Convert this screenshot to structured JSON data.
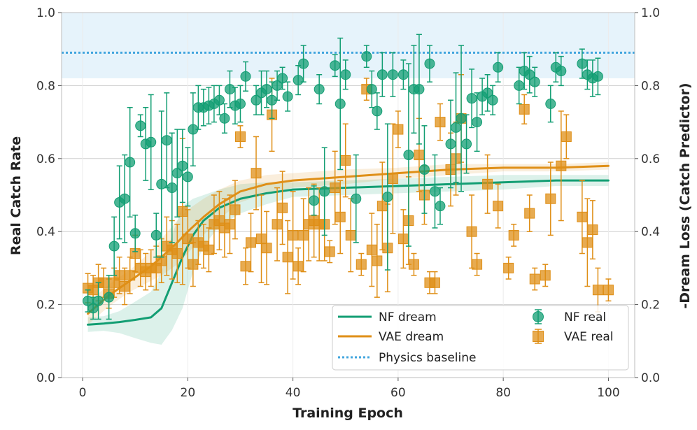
{
  "chart_data": {
    "type": "scatter",
    "xlabel": "Training Epoch",
    "ylabel_left": "Real Catch Rate",
    "ylabel_right": "-Dream Loss (Catch Predictor)",
    "xlim": [
      -4,
      105
    ],
    "ylim": [
      0.0,
      1.0
    ],
    "x_ticks": [
      "0",
      "20",
      "40",
      "60",
      "80",
      "100"
    ],
    "y_ticks": [
      "0.0",
      "0.2",
      "0.4",
      "0.6",
      "0.8",
      "1.0"
    ],
    "physics_baseline": 0.89,
    "baseline_band": [
      0.82,
      1.0
    ],
    "colors": {
      "nf": "#129e73",
      "vae": "#df8f17",
      "baseline": "#41a5de",
      "band": "#e6f3fb"
    },
    "legend": {
      "nf_dream": "NF dream",
      "vae_dream": "VAE dream",
      "baseline": "Physics baseline",
      "nf_real": "NF real",
      "vae_real": "VAE real"
    },
    "nf_dream": {
      "x": [
        1,
        4,
        7,
        10,
        13,
        15,
        17,
        19,
        21,
        23,
        26,
        30,
        35,
        40,
        50,
        60,
        70,
        80,
        90,
        100
      ],
      "y": [
        0.145,
        0.148,
        0.152,
        0.158,
        0.165,
        0.19,
        0.26,
        0.33,
        0.39,
        0.43,
        0.465,
        0.49,
        0.505,
        0.515,
        0.52,
        0.525,
        0.53,
        0.535,
        0.54,
        0.54
      ],
      "band": [
        0.02,
        0.02,
        0.03,
        0.05,
        0.07,
        0.1,
        0.13,
        0.14,
        0.1,
        0.07,
        0.05,
        0.04,
        0.03,
        0.02,
        0.02,
        0.02,
        0.02,
        0.02,
        0.015,
        0.015
      ]
    },
    "vae_dream": {
      "x": [
        1,
        3,
        5,
        7,
        9,
        11,
        13,
        15,
        18,
        20,
        23,
        26,
        30,
        35,
        40,
        50,
        60,
        70,
        80,
        90,
        100
      ],
      "y": [
        0.175,
        0.2,
        0.225,
        0.245,
        0.265,
        0.285,
        0.305,
        0.33,
        0.37,
        0.4,
        0.44,
        0.475,
        0.51,
        0.53,
        0.54,
        0.55,
        0.56,
        0.57,
        0.575,
        0.575,
        0.58
      ],
      "band": [
        0.03,
        0.03,
        0.03,
        0.03,
        0.03,
        0.035,
        0.04,
        0.05,
        0.06,
        0.06,
        0.05,
        0.04,
        0.03,
        0.025,
        0.02,
        0.02,
        0.015,
        0.015,
        0.01,
        0.01,
        0.01
      ]
    },
    "nf_real": {
      "x": [
        1,
        2,
        3,
        5,
        6,
        7,
        8,
        9,
        10,
        11,
        12,
        13,
        14,
        15,
        16,
        17,
        18,
        19,
        20,
        21,
        22,
        23,
        24,
        25,
        26,
        27,
        28,
        29,
        30,
        31,
        33,
        34,
        35,
        36,
        37,
        38,
        39,
        41,
        42,
        44,
        45,
        46,
        48,
        49,
        50,
        52,
        54,
        55,
        56,
        57,
        58,
        59,
        61,
        62,
        63,
        64,
        65,
        66,
        67,
        68,
        70,
        71,
        72,
        73,
        74,
        75,
        76,
        77,
        78,
        79,
        83,
        84,
        85,
        86,
        89,
        90,
        91,
        95,
        96,
        97,
        98
      ],
      "y": [
        0.21,
        0.19,
        0.21,
        0.22,
        0.36,
        0.48,
        0.49,
        0.59,
        0.395,
        0.69,
        0.64,
        0.645,
        0.39,
        0.53,
        0.65,
        0.52,
        0.56,
        0.58,
        0.55,
        0.68,
        0.74,
        0.74,
        0.745,
        0.75,
        0.76,
        0.71,
        0.79,
        0.745,
        0.75,
        0.825,
        0.76,
        0.78,
        0.79,
        0.76,
        0.8,
        0.82,
        0.77,
        0.815,
        0.86,
        0.485,
        0.79,
        0.51,
        0.855,
        0.75,
        0.83,
        0.49,
        0.88,
        0.79,
        0.73,
        0.83,
        0.495,
        0.83,
        0.83,
        0.61,
        0.79,
        0.79,
        0.57,
        0.86,
        0.51,
        0.47,
        0.64,
        0.685,
        0.71,
        0.64,
        0.765,
        0.7,
        0.77,
        0.78,
        0.76,
        0.85,
        0.8,
        0.84,
        0.83,
        0.81,
        0.75,
        0.85,
        0.84,
        0.86,
        0.83,
        0.82,
        0.825
      ],
      "err": [
        0.03,
        0.03,
        0.05,
        0.06,
        0.08,
        0.1,
        0.12,
        0.15,
        0.05,
        0.03,
        0.1,
        0.13,
        0.06,
        0.2,
        0.13,
        0.15,
        0.12,
        0.1,
        0.08,
        0.1,
        0.06,
        0.05,
        0.05,
        0.05,
        0.04,
        0.04,
        0.05,
        0.05,
        0.05,
        0.04,
        0.04,
        0.06,
        0.05,
        0.05,
        0.04,
        0.03,
        0.04,
        0.04,
        0.05,
        0.04,
        0.04,
        0.12,
        0.03,
        0.18,
        0.04,
        0.12,
        0.03,
        0.05,
        0.05,
        0.06,
        0.2,
        0.06,
        0.04,
        0.25,
        0.12,
        0.15,
        0.12,
        0.05,
        0.1,
        0.05,
        0.12,
        0.15,
        0.2,
        0.08,
        0.08,
        0.08,
        0.05,
        0.05,
        0.04,
        0.04,
        0.05,
        0.05,
        0.05,
        0.04,
        0.05,
        0.04,
        0.04,
        0.04,
        0.04,
        0.05,
        0.05
      ]
    },
    "vae_real": {
      "x": [
        1,
        2,
        3,
        4,
        5,
        6,
        7,
        8,
        9,
        10,
        11,
        12,
        13,
        14,
        15,
        16,
        17,
        18,
        19,
        20,
        21,
        22,
        23,
        24,
        25,
        26,
        27,
        28,
        29,
        30,
        31,
        32,
        33,
        34,
        35,
        36,
        37,
        38,
        39,
        40,
        41,
        42,
        43,
        44,
        45,
        46,
        47,
        48,
        49,
        50,
        51,
        53,
        54,
        55,
        56,
        57,
        58,
        59,
        60,
        61,
        62,
        63,
        64,
        65,
        66,
        67,
        68,
        70,
        71,
        72,
        74,
        75,
        77,
        79,
        81,
        82,
        84,
        85,
        86,
        88,
        89,
        91,
        92,
        95,
        96,
        97,
        98,
        100
      ],
      "y": [
        0.245,
        0.24,
        0.26,
        0.26,
        0.23,
        0.26,
        0.28,
        0.25,
        0.28,
        0.34,
        0.3,
        0.29,
        0.3,
        0.3,
        0.32,
        0.36,
        0.35,
        0.34,
        0.455,
        0.38,
        0.31,
        0.37,
        0.36,
        0.35,
        0.42,
        0.43,
        0.41,
        0.42,
        0.46,
        0.66,
        0.305,
        0.37,
        0.56,
        0.38,
        0.355,
        0.72,
        0.42,
        0.465,
        0.33,
        0.39,
        0.305,
        0.39,
        0.42,
        0.43,
        0.42,
        0.42,
        0.345,
        0.52,
        0.44,
        0.595,
        0.39,
        0.31,
        0.79,
        0.35,
        0.32,
        0.47,
        0.355,
        0.545,
        0.68,
        0.38,
        0.43,
        0.31,
        0.61,
        0.5,
        0.26,
        0.26,
        0.7,
        0.57,
        0.6,
        0.71,
        0.4,
        0.31,
        0.53,
        0.47,
        0.3,
        0.39,
        0.735,
        0.45,
        0.27,
        0.28,
        0.49,
        0.58,
        0.66,
        0.44,
        0.37,
        0.405,
        0.24,
        0.24
      ],
      "err": [
        0.04,
        0.04,
        0.05,
        0.04,
        0.04,
        0.04,
        0.05,
        0.05,
        0.05,
        0.05,
        0.05,
        0.05,
        0.05,
        0.06,
        0.06,
        0.08,
        0.08,
        0.08,
        0.2,
        0.08,
        0.06,
        0.06,
        0.06,
        0.06,
        0.08,
        0.08,
        0.08,
        0.08,
        0.08,
        0.03,
        0.05,
        0.08,
        0.1,
        0.12,
        0.1,
        0.1,
        0.1,
        0.1,
        0.1,
        0.12,
        0.05,
        0.1,
        0.1,
        0.1,
        0.1,
        0.1,
        0.03,
        0.1,
        0.1,
        0.1,
        0.1,
        0.03,
        0.03,
        0.1,
        0.1,
        0.12,
        0.12,
        0.15,
        0.05,
        0.08,
        0.12,
        0.03,
        0.1,
        0.08,
        0.03,
        0.03,
        0.05,
        0.1,
        0.1,
        0.12,
        0.1,
        0.03,
        0.08,
        0.06,
        0.03,
        0.03,
        0.04,
        0.05,
        0.03,
        0.03,
        0.1,
        0.15,
        0.06,
        0.1,
        0.12,
        0.08,
        0.06,
        0.03
      ]
    }
  }
}
